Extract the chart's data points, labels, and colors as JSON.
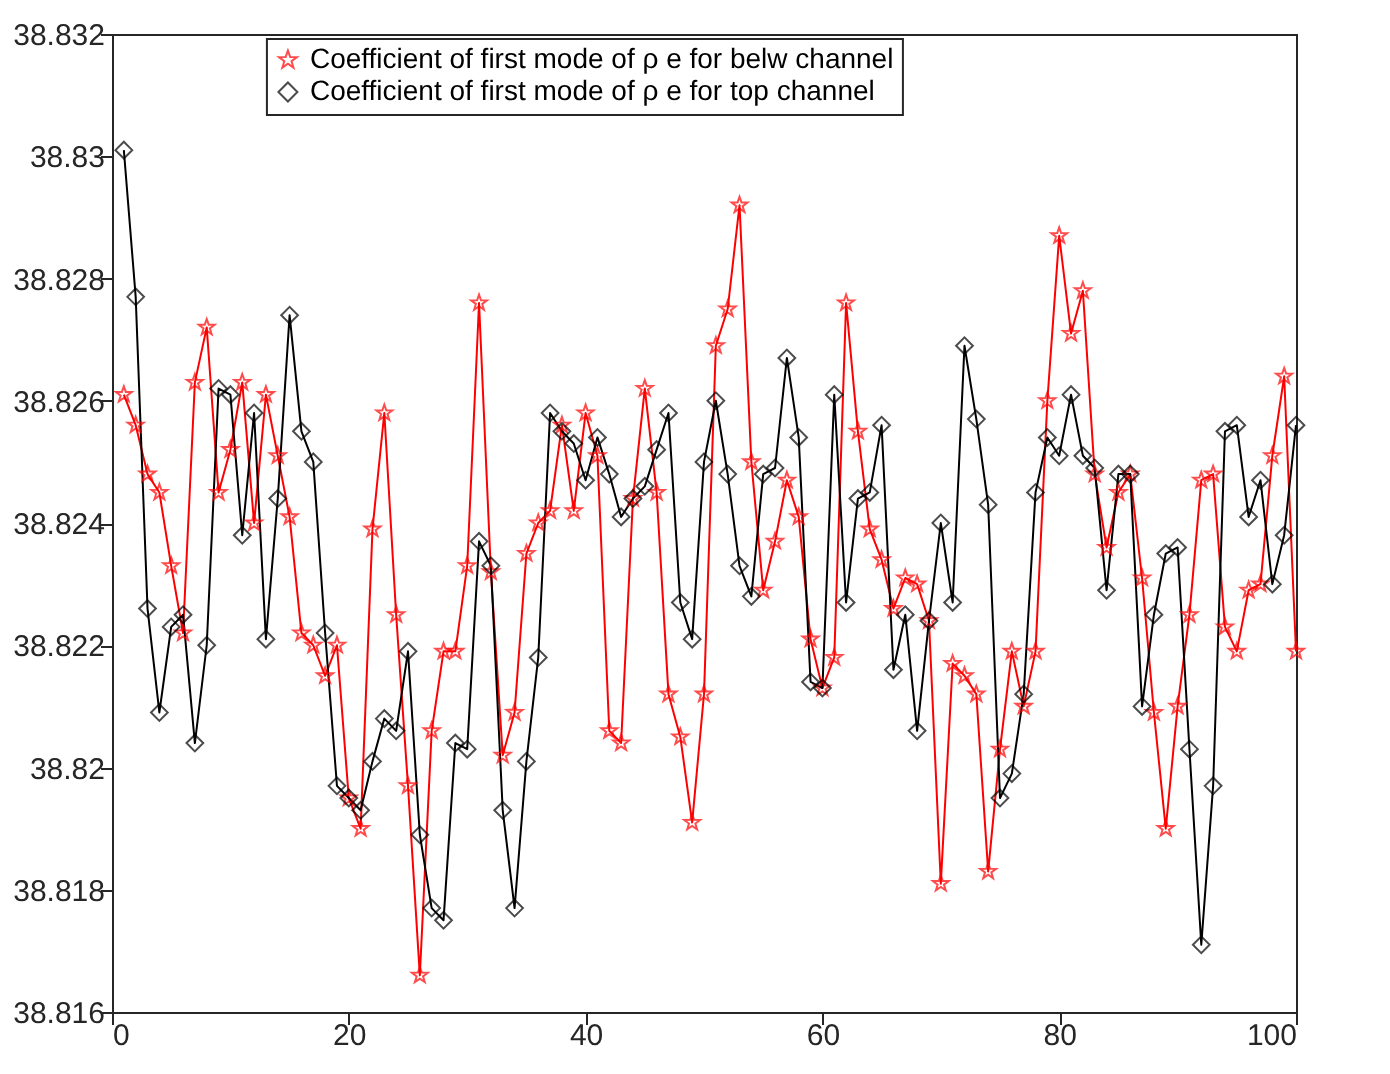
{
  "chart_data": {
    "type": "line",
    "x": [
      1,
      2,
      3,
      4,
      5,
      6,
      7,
      8,
      9,
      10,
      11,
      12,
      13,
      14,
      15,
      16,
      17,
      18,
      19,
      20,
      21,
      22,
      23,
      24,
      25,
      26,
      27,
      28,
      29,
      30,
      31,
      32,
      33,
      34,
      35,
      36,
      37,
      38,
      39,
      40,
      41,
      42,
      43,
      44,
      45,
      46,
      47,
      48,
      49,
      50,
      51,
      52,
      53,
      54,
      55,
      56,
      57,
      58,
      59,
      60,
      61,
      62,
      63,
      64,
      65,
      66,
      67,
      68,
      69,
      70,
      71,
      72,
      73,
      74,
      75,
      76,
      77,
      78,
      79,
      80,
      81,
      82,
      83,
      84,
      85,
      86,
      87,
      88,
      89,
      90,
      91,
      92,
      93,
      94,
      95,
      96,
      97,
      98,
      99,
      100
    ],
    "series": [
      {
        "name": "Coefficient of first mode of ρ e for belw channel",
        "color": "#ff0000",
        "marker": "star",
        "values": [
          38.8261,
          38.8256,
          38.8248,
          38.8245,
          38.8233,
          38.8222,
          38.8263,
          38.8272,
          38.8245,
          38.8252,
          38.8263,
          38.824,
          38.8261,
          38.8251,
          38.8241,
          38.8222,
          38.822,
          38.8215,
          38.822,
          38.8195,
          38.819,
          38.8239,
          38.8258,
          38.8225,
          38.8197,
          38.8166,
          38.8206,
          38.8219,
          38.8219,
          38.8233,
          38.8276,
          38.8232,
          38.8202,
          38.8209,
          38.8235,
          38.824,
          38.8242,
          38.8256,
          38.8242,
          38.8258,
          38.8251,
          38.8206,
          38.8204,
          38.8244,
          38.8262,
          38.8245,
          38.8212,
          38.8205,
          38.8191,
          38.8212,
          38.8269,
          38.8275,
          38.8292,
          38.825,
          38.8229,
          38.8237,
          38.8247,
          38.8241,
          38.8221,
          38.8213,
          38.8218,
          38.8276,
          38.8255,
          38.8239,
          38.8234,
          38.8226,
          38.8231,
          38.823,
          38.8224,
          38.8181,
          38.8217,
          38.8215,
          38.8212,
          38.8183,
          38.8203,
          38.8219,
          38.821,
          38.8219,
          38.826,
          38.8287,
          38.8271,
          38.8278,
          38.8248,
          38.8236,
          38.8245,
          38.8248,
          38.8231,
          38.8209,
          38.819,
          38.821,
          38.8225,
          38.8247,
          38.8248,
          38.8223,
          38.8219,
          38.8229,
          38.823,
          38.8251,
          38.8264,
          38.8219
        ]
      },
      {
        "name": "Coefficient of first mode of ρ e for top channel",
        "color": "#000000",
        "marker": "diamond",
        "values": [
          38.8301,
          38.8277,
          38.8226,
          38.8209,
          38.8223,
          38.8225,
          38.8204,
          38.822,
          38.8262,
          38.8261,
          38.8238,
          38.8258,
          38.8221,
          38.8244,
          38.8274,
          38.8255,
          38.825,
          38.8222,
          38.8197,
          38.8195,
          38.8193,
          38.8201,
          38.8208,
          38.8206,
          38.8219,
          38.8189,
          38.8177,
          38.8175,
          38.8204,
          38.8203,
          38.8237,
          38.8233,
          38.8193,
          38.8177,
          38.8201,
          38.8218,
          38.8258,
          38.8255,
          38.8253,
          38.8247,
          38.8254,
          38.8248,
          38.8241,
          38.8244,
          38.8246,
          38.8252,
          38.8258,
          38.8227,
          38.8221,
          38.825,
          38.826,
          38.8248,
          38.8233,
          38.8228,
          38.8248,
          38.8249,
          38.8267,
          38.8254,
          38.8214,
          38.8213,
          38.8261,
          38.8227,
          38.8244,
          38.8245,
          38.8256,
          38.8216,
          38.8225,
          38.8206,
          38.8224,
          38.824,
          38.8227,
          38.8269,
          38.8257,
          38.8243,
          38.8195,
          38.8199,
          38.8212,
          38.8245,
          38.8254,
          38.8251,
          38.8261,
          38.8251,
          38.8249,
          38.8229,
          38.8248,
          38.8248,
          38.821,
          38.8225,
          38.8235,
          38.8236,
          38.8203,
          38.8171,
          38.8197,
          38.8255,
          38.8256,
          38.8241,
          38.8247,
          38.823,
          38.8238,
          38.8256
        ]
      }
    ],
    "xlim": [
      0,
      100
    ],
    "xticks": [
      0,
      20,
      40,
      60,
      80,
      100
    ],
    "ylim": [
      38.816,
      38.832
    ],
    "yticks": [
      38.816,
      38.818,
      38.82,
      38.822,
      38.824,
      38.826,
      38.828,
      38.83,
      38.832
    ],
    "grid": false,
    "legend": "top"
  }
}
